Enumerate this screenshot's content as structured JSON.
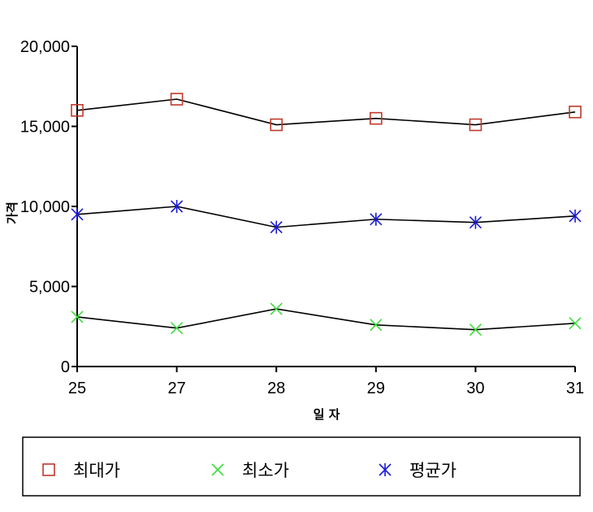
{
  "chart_data": {
    "type": "line",
    "categories": [
      "25",
      "27",
      "28",
      "29",
      "30",
      "31"
    ],
    "series": [
      {
        "name": "최대가",
        "marker": "square",
        "marker_color": "#c0392b",
        "values": [
          16000,
          16700,
          15100,
          15500,
          15100,
          15900
        ]
      },
      {
        "name": "최소가",
        "marker": "x",
        "marker_color": "#3ddc3d",
        "values": [
          3100,
          2400,
          3600,
          2600,
          2300,
          2700
        ]
      },
      {
        "name": "평균가",
        "marker": "asterisk",
        "marker_color": "#1a1ad6",
        "values": [
          9500,
          10000,
          8700,
          9200,
          9000,
          9400
        ]
      }
    ],
    "line_color": "#000000",
    "title": "",
    "xlabel": "일  자",
    "ylabel": "가격",
    "ylim": [
      0,
      20000
    ],
    "yticks": [
      0,
      5000,
      10000,
      15000,
      20000
    ],
    "ytick_labels": [
      "0",
      "5,000",
      "10,000",
      "15,000",
      "20,000"
    ],
    "grid": false,
    "legend_position": "bottom"
  }
}
